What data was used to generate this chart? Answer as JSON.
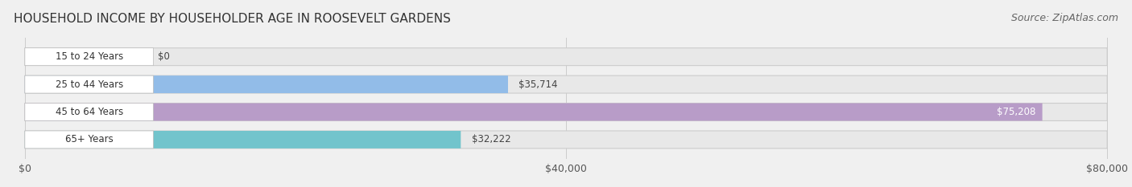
{
  "title": "HOUSEHOLD INCOME BY HOUSEHOLDER AGE IN ROOSEVELT GARDENS",
  "source": "Source: ZipAtlas.com",
  "categories": [
    "15 to 24 Years",
    "25 to 44 Years",
    "45 to 64 Years",
    "65+ Years"
  ],
  "values": [
    0,
    35714,
    75208,
    32222
  ],
  "colors": [
    "#f4a0a0",
    "#92bce8",
    "#b89cc8",
    "#72c4cc"
  ],
  "bar_labels": [
    "$0",
    "$35,714",
    "$75,208",
    "$32,222"
  ],
  "xlim": [
    0,
    80000
  ],
  "xticks": [
    0,
    40000,
    80000
  ],
  "xticklabels": [
    "$0",
    "$40,000",
    "$80,000"
  ],
  "background_color": "#f0f0f0",
  "bar_bg_color": "#e8e8e8",
  "label_box_color": "#ffffff",
  "bar_height": 0.62,
  "title_fontsize": 11,
  "source_fontsize": 9,
  "tick_fontsize": 9,
  "label_fontsize": 8.5
}
